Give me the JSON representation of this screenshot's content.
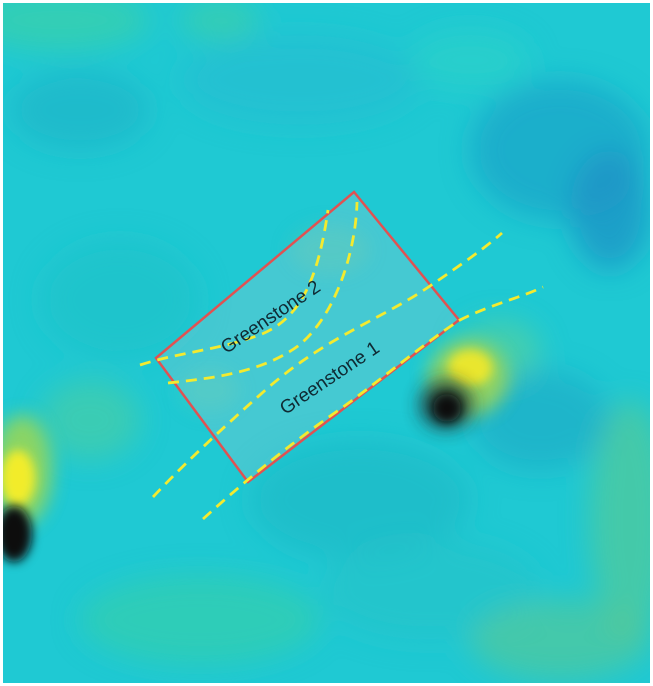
{
  "map": {
    "labels": {
      "greenstone_2": "Greenstone 2",
      "greenstone_1": "Greenstone 1"
    },
    "colors": {
      "background_base": "#1fc9d3",
      "background_teal": "#26b8c2",
      "background_green": "#4fcf9a",
      "anomaly_yellow": "#f2ec2a",
      "anomaly_dark": "#070b10",
      "outline_red": "#e05252",
      "dashed_lines": "#f4ea2e",
      "label_text": "#0f2a33"
    }
  }
}
